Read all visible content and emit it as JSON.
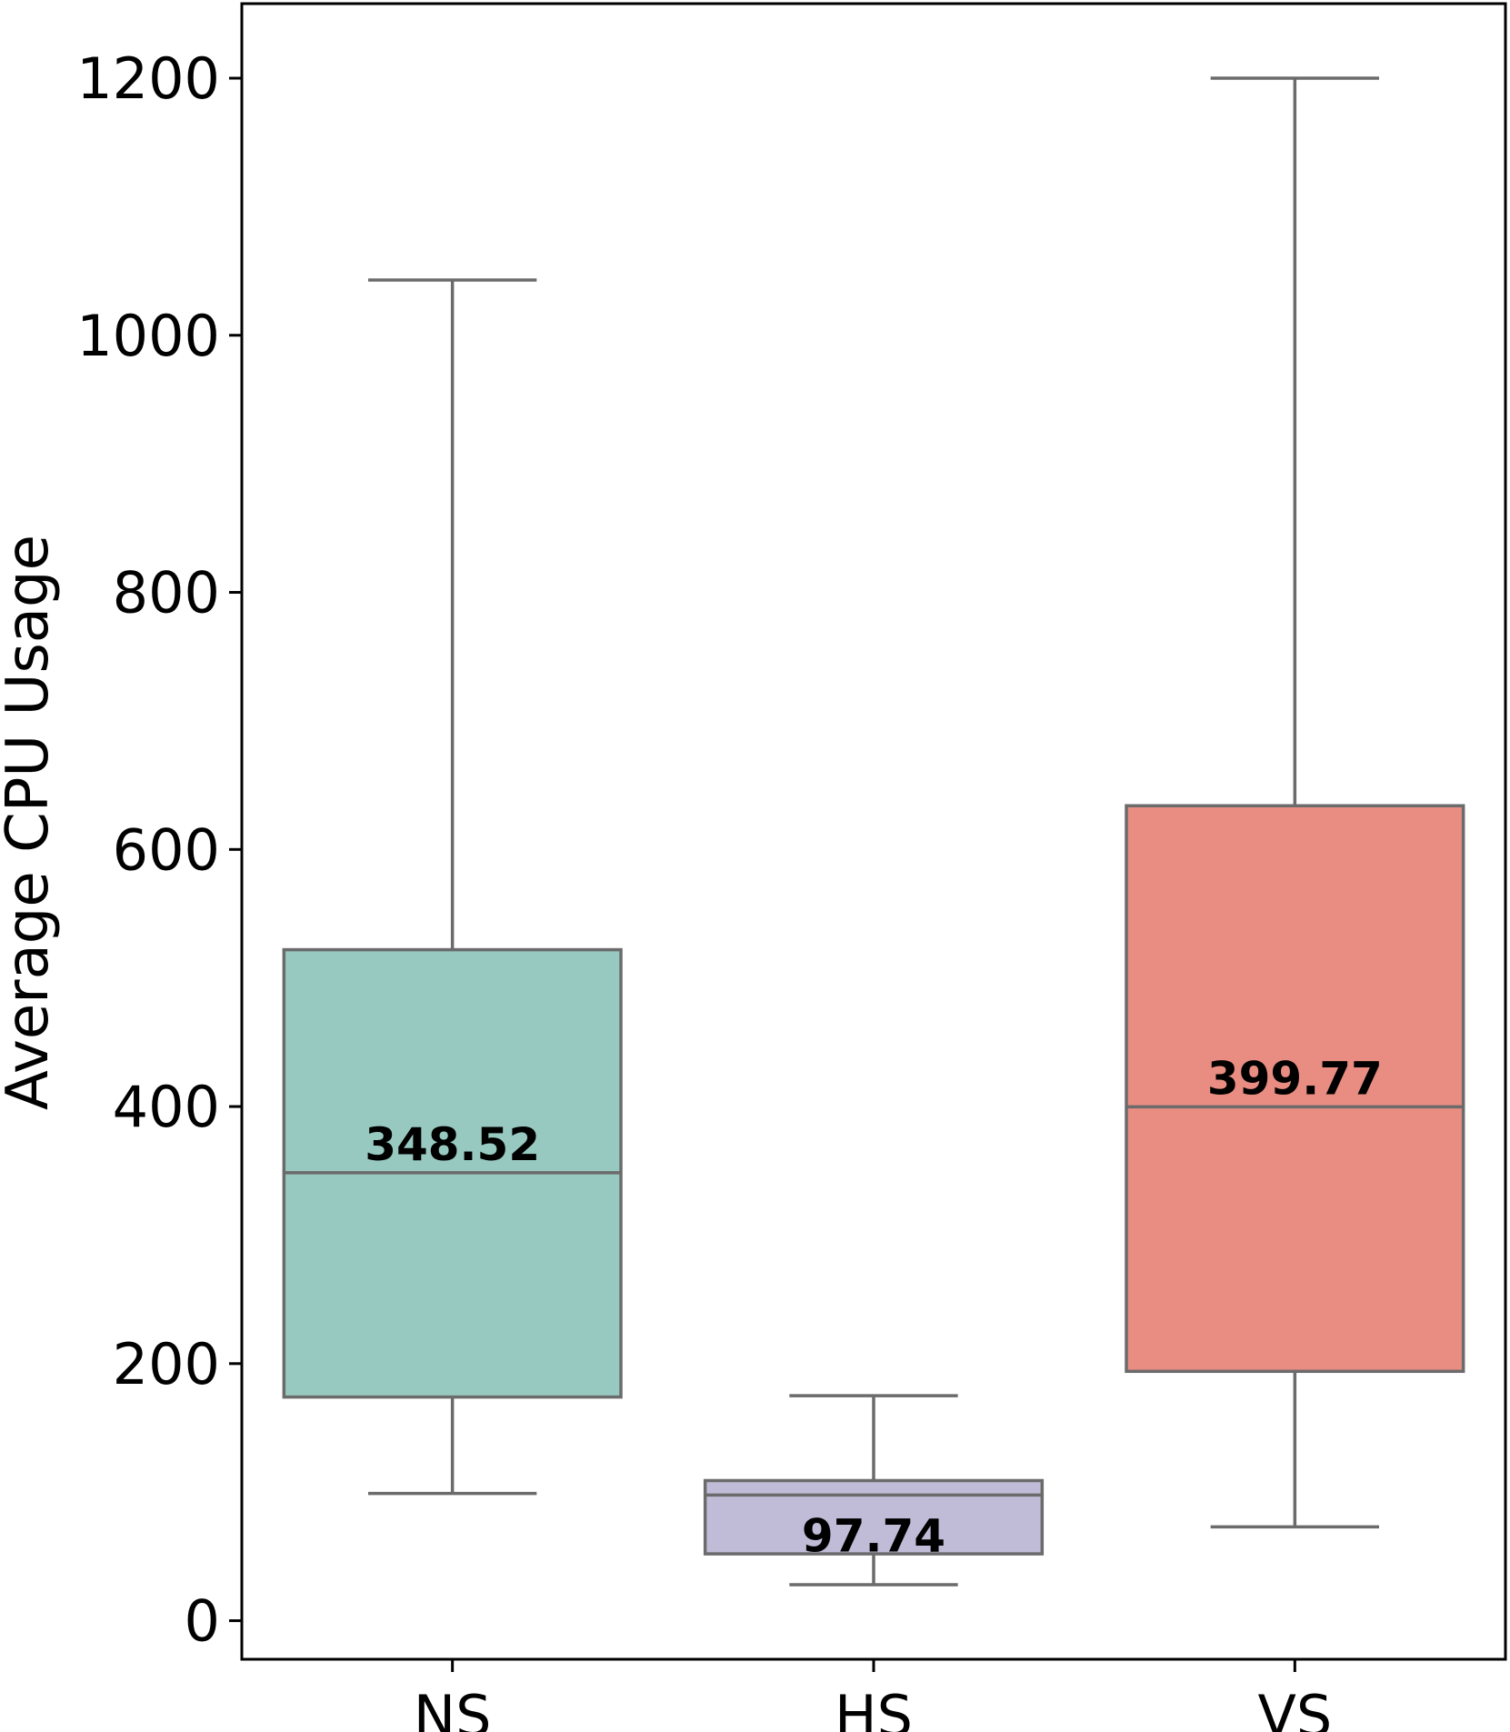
{
  "chart_data": {
    "type": "box",
    "title": "",
    "xlabel": "",
    "ylabel": "Average CPU Usage",
    "ylim": [
      -30,
      1258
    ],
    "yticks": [
      0,
      200,
      400,
      600,
      800,
      1000,
      1200
    ],
    "grid": false,
    "categories": [
      "NS",
      "HS",
      "VS"
    ],
    "boxes": [
      {
        "category": "NS",
        "whisker_low": 99,
        "q1": 174,
        "median": 348.52,
        "q3": 522,
        "whisker_high": 1043,
        "median_label": "348.52",
        "fill": "#98c9c0"
      },
      {
        "category": "HS",
        "whisker_low": 28,
        "q1": 52,
        "median": 97.74,
        "q3": 109,
        "whisker_high": 175,
        "median_label": "97.74",
        "fill": "#c0bcd8"
      },
      {
        "category": "VS",
        "whisker_low": 73,
        "q1": 194,
        "median": 399.77,
        "q3": 634,
        "whisker_high": 1200,
        "median_label": "399.77",
        "fill": "#e98d82"
      }
    ],
    "line_color": "#6b6b6b"
  }
}
